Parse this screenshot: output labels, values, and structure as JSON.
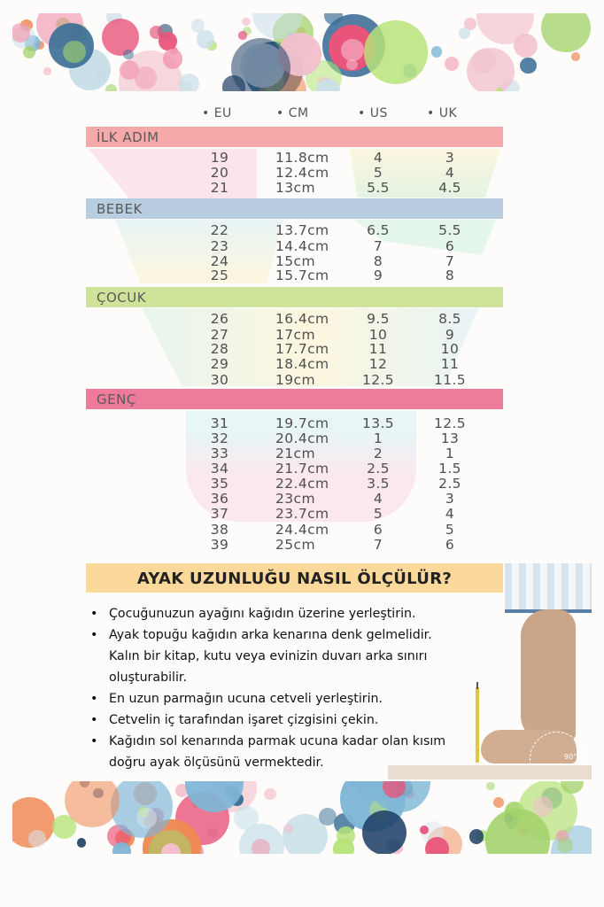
{
  "columns": [
    "• EU",
    "• CM",
    "• US",
    "• UK"
  ],
  "groups": [
    {
      "name": "İLK ADIM",
      "color": "#f6a9a9",
      "rows": [
        [
          "19",
          "11.8cm",
          "4",
          "3"
        ],
        [
          "20",
          "12.4cm",
          "5",
          "4"
        ],
        [
          "21",
          "13cm",
          "5.5",
          "4.5"
        ]
      ]
    },
    {
      "name": "BEBEK",
      "color": "#b9cde0",
      "rows": [
        [
          "22",
          "13.7cm",
          "6.5",
          "5.5"
        ],
        [
          "23",
          "14.4cm",
          "7",
          "6"
        ],
        [
          "24",
          "15cm",
          "8",
          "7"
        ],
        [
          "25",
          "15.7cm",
          "9",
          "8"
        ]
      ]
    },
    {
      "name": "ÇOCUK",
      "color": "#cfe39a",
      "rows": [
        [
          "26",
          "16.4cm",
          "9.5",
          "8.5"
        ],
        [
          "27",
          "17cm",
          "10",
          "9"
        ],
        [
          "28",
          "17.7cm",
          "11",
          "10"
        ],
        [
          "29",
          "18.4cm",
          "12",
          "11"
        ],
        [
          "30",
          "19cm",
          "12.5",
          "11.5"
        ]
      ]
    },
    {
      "name": "GENÇ",
      "color": "#ef7b9b",
      "rows": [
        [
          "31",
          "19.7cm",
          "13.5",
          "12.5"
        ],
        [
          "32",
          "20.4cm",
          "1",
          "13"
        ],
        [
          "33",
          "21cm",
          "2",
          "1"
        ],
        [
          "34",
          "21.7cm",
          "2.5",
          "1.5"
        ],
        [
          "35",
          "22.4cm",
          "3.5",
          "2.5"
        ],
        [
          "36",
          "23cm",
          "4",
          "3"
        ],
        [
          "37",
          "23.7cm",
          "5",
          "4"
        ],
        [
          "38",
          "24.4cm",
          "6",
          "5"
        ],
        [
          "39",
          "25cm",
          "7",
          "6"
        ]
      ]
    }
  ],
  "how_to": {
    "title": "AYAK UZUNLUĞU NASIL ÖLÇÜLÜR?",
    "steps": [
      "Çocuğunuzun ayağını kağıdın üzerine yerleştirin.",
      "Ayak topuğu kağıdın arka kenarına denk gelmelidir. Kalın bir kitap, kutu veya evinizin duvarı arka sınırı oluşturabilir.",
      "En uzun parmağın ucuna cetveli yerleştirin.",
      "Cetvelin iç tarafından işaret çizgisini çekin.",
      "Kağıdın sol kenarında parmak ucuna kadar olan kısım doğru ayak ölçüsünü vermektedir."
    ],
    "angle_label": "90°"
  }
}
